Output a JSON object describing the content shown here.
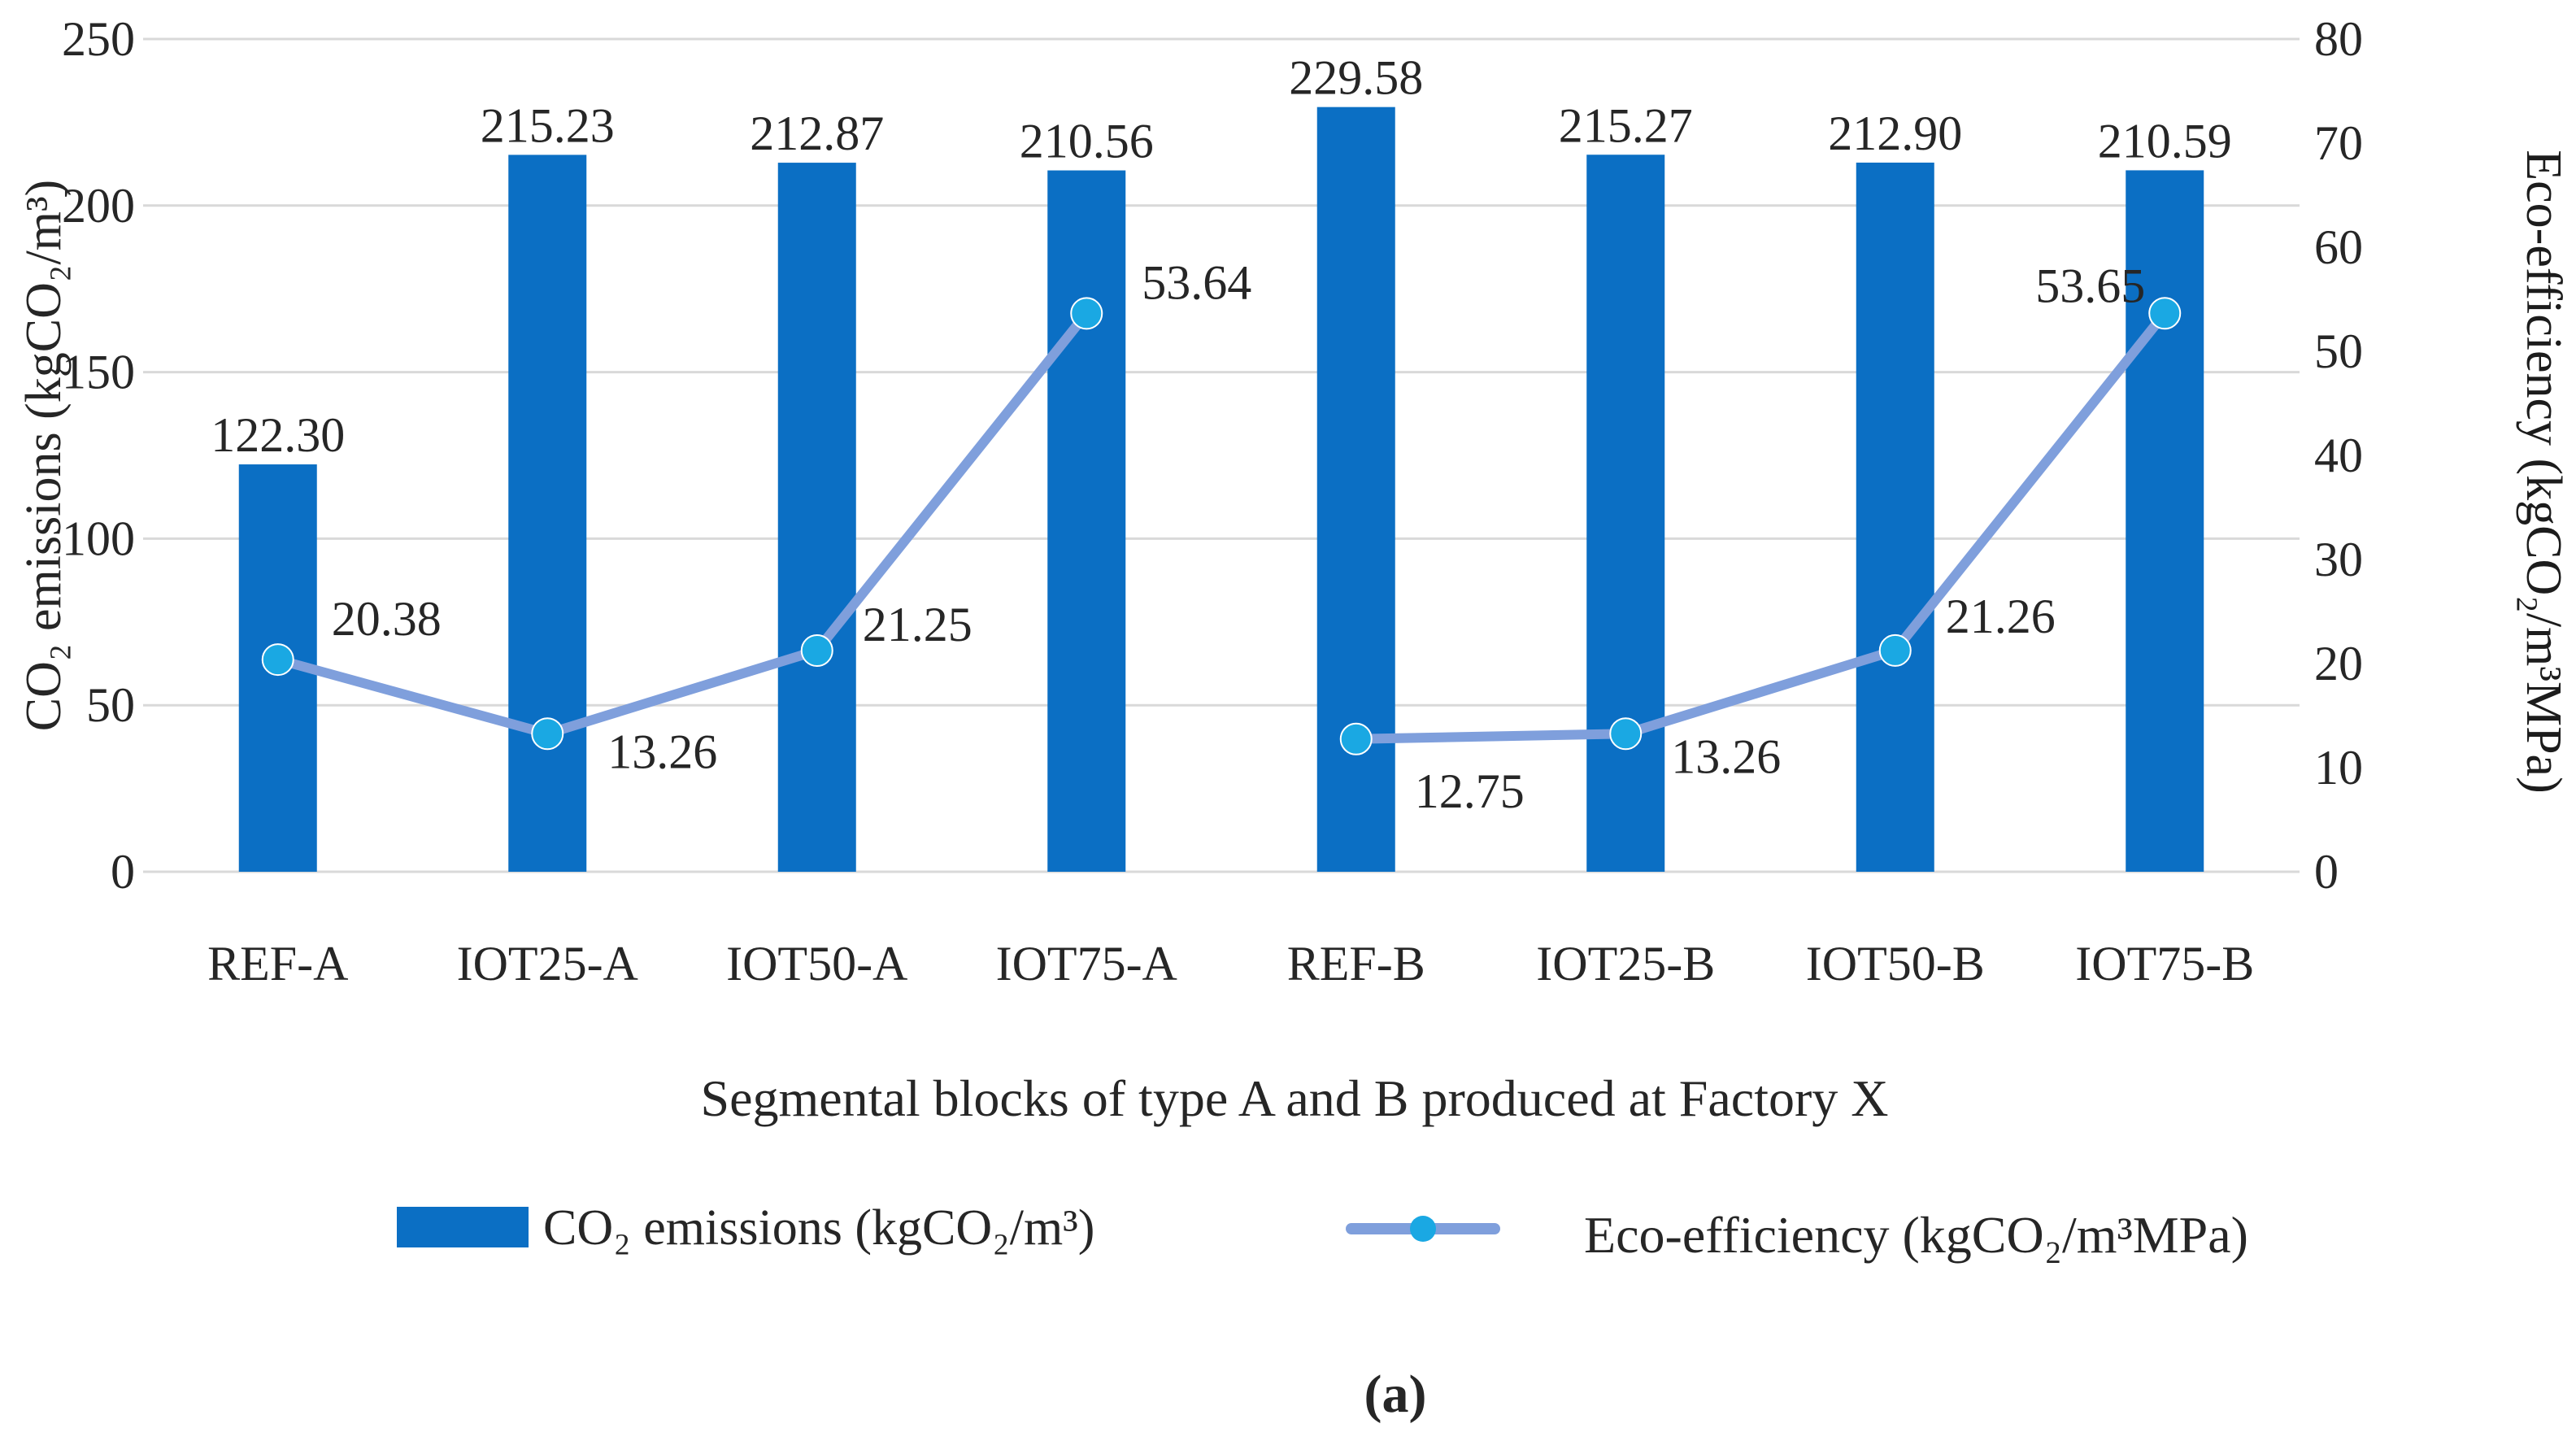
{
  "chart_data": {
    "type": "bar",
    "categories": [
      "REF-A",
      "IOT25-A",
      "IOT50-A",
      "IOT75-A",
      "REF-B",
      "IOT25-B",
      "IOT50-B",
      "IOT75-B"
    ],
    "series": [
      {
        "name": "CO₂ emissions (kgCO₂/m³)",
        "kind": "bar",
        "axis": "left",
        "values": [
          122.3,
          215.23,
          212.87,
          210.56,
          229.58,
          215.27,
          212.9,
          210.59
        ],
        "labels": [
          "122.30",
          "215.23",
          "212.87",
          "210.56",
          "229.58",
          "215.27",
          "212.90",
          "210.59"
        ]
      },
      {
        "name": "Eco-efficiency (kgCO₂/m³MPa)",
        "kind": "line",
        "axis": "right",
        "values": [
          20.38,
          13.26,
          21.25,
          53.64,
          12.75,
          13.26,
          21.26,
          53.65
        ],
        "labels": [
          "20.38",
          "13.26",
          "21.25",
          "53.64",
          "12.75",
          "13.26",
          "21.26",
          "53.65"
        ]
      }
    ],
    "xlabel": "Segmental blocks of type A and B produced at Factory X",
    "ylabel_left": "CO₂ emissions (kgCO₂/m³)",
    "ylabel_right": "Eco-efficiency (kgCO₂/m³MPa)",
    "ylim_left": [
      0,
      250
    ],
    "ylim_right": [
      0,
      80
    ],
    "yticks_left": [
      "0",
      "50",
      "100",
      "150",
      "200",
      "250"
    ],
    "yticks_right": [
      "0",
      "10",
      "20",
      "30",
      "40",
      "50",
      "60",
      "70",
      "80"
    ],
    "grid": true,
    "legend": "bottom",
    "legend_entries": [
      "CO₂ emissions (kgCO₂/m³)",
      "Eco-efficiency (kgCO₂/m³MPa)"
    ],
    "caption": "(a)",
    "colors": {
      "bar": "#0b6fc4",
      "line": "#7f9fdc",
      "marker": "#1aa8e3",
      "grid": "#d9d9d9",
      "text": "#262626",
      "right_axis_label": "#1c1c1c"
    }
  }
}
